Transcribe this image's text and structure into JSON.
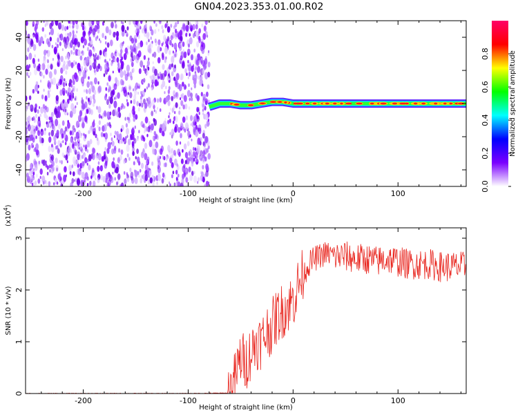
{
  "title": "GN04.2023.353.01.00.R02",
  "chart_data": [
    {
      "type": "heatmap",
      "xlabel": "Height of straight line (km)",
      "ylabel": "Frequency (Hz)",
      "xlim": [
        -255,
        165
      ],
      "ylim": [
        -50,
        50
      ],
      "xticks": [
        -200,
        -100,
        0,
        100
      ],
      "yticks": [
        -40,
        -20,
        0,
        20,
        40
      ],
      "noise_region_x": [
        -255,
        -80
      ],
      "signal_track": {
        "x": [
          -80,
          -70,
          -60,
          -50,
          -40,
          -30,
          -20,
          -10,
          0,
          20,
          40,
          60,
          80,
          100,
          120,
          140,
          165
        ],
        "y": [
          -2,
          0,
          0,
          -1,
          -1,
          0,
          1,
          1,
          0,
          0,
          0,
          0,
          0,
          0,
          0,
          0,
          0
        ]
      },
      "colorbar": {
        "label": "Normalized spectral amplitude",
        "range": [
          0.0,
          1.0
        ],
        "ticks": [
          0.0,
          0.2,
          0.4,
          0.6,
          0.8
        ],
        "tick_labels": [
          "0.0",
          "0.2",
          "0.4",
          "0.6",
          "0.8"
        ],
        "colors": [
          "#ffffff",
          "#7b00ff",
          "#0000ff",
          "#00ffff",
          "#00ff00",
          "#ffff00",
          "#ff0000",
          "#ff0066"
        ]
      },
      "grid": false
    },
    {
      "type": "line",
      "xlabel": "Height of straight line (km)",
      "ylabel": "SNR (10 * v/v)",
      "y_multiplier": "(x10",
      "y_multiplier_exp": "4",
      "xlim": [
        -255,
        165
      ],
      "ylim": [
        0,
        3.2
      ],
      "xticks": [
        -200,
        -100,
        0,
        100
      ],
      "yticks": [
        0,
        1,
        2,
        3
      ],
      "series": [
        {
          "color": "#e8221b",
          "x": [
            -255,
            -200,
            -150,
            -100,
            -60,
            -55,
            -50,
            -45,
            -40,
            -35,
            -30,
            -25,
            -20,
            -15,
            -10,
            -5,
            0,
            5,
            10,
            15,
            20,
            25,
            30,
            35,
            40,
            50,
            60,
            70,
            80,
            90,
            100,
            110,
            120,
            130,
            140,
            150,
            165
          ],
          "y": [
            0.0,
            0.0,
            0.0,
            0.0,
            0.01,
            0.3,
            0.7,
            0.6,
            0.8,
            1.0,
            1.0,
            1.2,
            1.3,
            1.5,
            1.6,
            1.7,
            1.8,
            2.1,
            2.3,
            2.5,
            2.6,
            2.65,
            2.7,
            2.7,
            2.65,
            2.65,
            2.6,
            2.6,
            2.55,
            2.6,
            2.55,
            2.5,
            2.5,
            2.5,
            2.45,
            2.45,
            2.45
          ]
        }
      ],
      "grid": false
    }
  ]
}
